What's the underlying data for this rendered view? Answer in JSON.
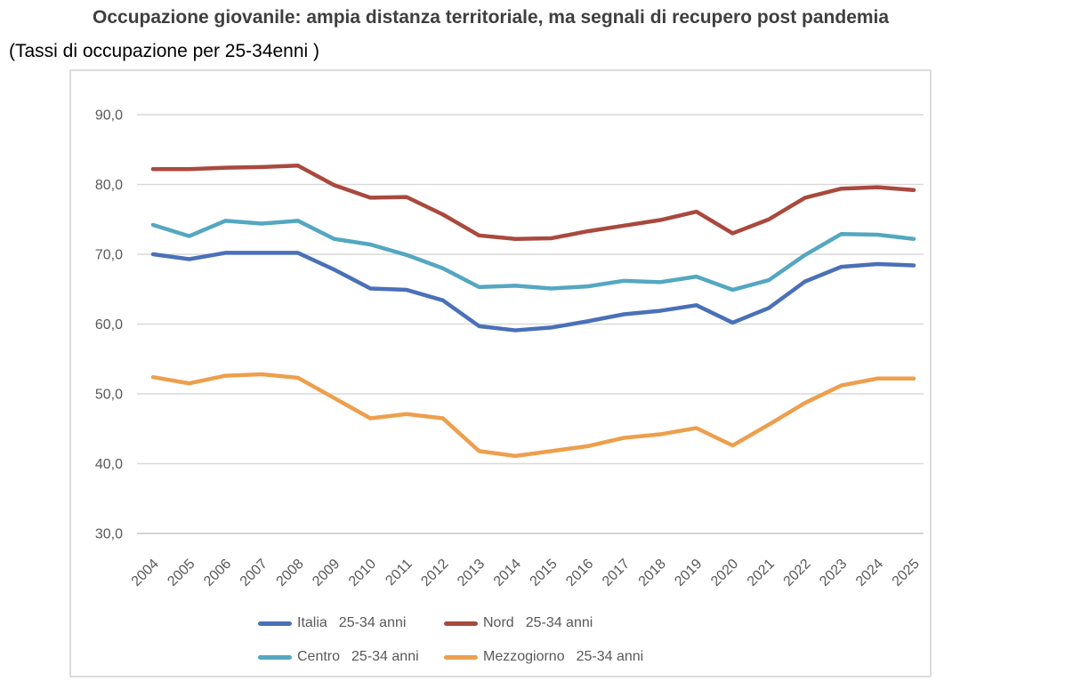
{
  "title": "Occupazione giovanile: ampia distanza territoriale, ma segnali di recupero post pandemia",
  "subtitle": "(Tassi di occupazione per 25-34enni )",
  "legend": {
    "items": [
      {
        "name": "Italia",
        "suffix": "25-34 anni",
        "color": "#4a70b8"
      },
      {
        "name": "Nord",
        "suffix": "25-34 anni",
        "color": "#a9493e"
      },
      {
        "name": "Centro",
        "suffix": "25-34 anni",
        "color": "#54a7c1"
      },
      {
        "name": "Mezzogiorno",
        "suffix": "25-34 anni",
        "color": "#ed9f4d"
      }
    ]
  },
  "chart_data": {
    "type": "line",
    "title": "Occupazione giovanile: ampia distanza territoriale, ma segnali di recupero post pandemia",
    "subtitle": "(Tassi di occupazione per 25-34enni )",
    "categories": [
      "2004",
      "2005",
      "2006",
      "2007",
      "2008",
      "2009",
      "2010",
      "2011",
      "2012",
      "2013",
      "2014",
      "2015",
      "2016",
      "2017",
      "2018",
      "2019",
      "2020",
      "2021",
      "2022",
      "2023",
      "2024",
      "2025"
    ],
    "series": [
      {
        "name": "Italia 25-34 anni",
        "color": "#4a70b8",
        "values": [
          70.0,
          69.3,
          70.2,
          70.2,
          70.2,
          67.8,
          65.1,
          64.9,
          63.4,
          59.7,
          59.1,
          59.5,
          60.4,
          61.4,
          61.9,
          62.7,
          60.2,
          62.3,
          66.1,
          68.2,
          68.6,
          68.4
        ]
      },
      {
        "name": "Nord 25-34 anni",
        "color": "#a9493e",
        "values": [
          82.2,
          82.2,
          82.4,
          82.5,
          82.7,
          79.9,
          78.1,
          78.2,
          75.7,
          72.7,
          72.2,
          72.3,
          73.3,
          74.1,
          74.9,
          76.1,
          73.0,
          75.0,
          78.1,
          79.4,
          79.6,
          79.2
        ]
      },
      {
        "name": "Centro 25-34 anni",
        "color": "#54a7c1",
        "values": [
          74.2,
          72.6,
          74.8,
          74.4,
          74.8,
          72.2,
          71.4,
          69.9,
          68.0,
          65.3,
          65.5,
          65.1,
          65.4,
          66.2,
          66.0,
          66.8,
          64.9,
          66.3,
          69.9,
          72.9,
          72.8,
          72.2
        ]
      },
      {
        "name": "Mezzogiorno 25-34 anni",
        "color": "#ed9f4d",
        "values": [
          52.4,
          51.5,
          52.6,
          52.8,
          52.3,
          49.4,
          46.5,
          47.1,
          46.5,
          41.8,
          41.1,
          41.8,
          42.5,
          43.7,
          44.2,
          45.1,
          42.6,
          45.6,
          48.7,
          51.2,
          52.2,
          52.2
        ]
      }
    ],
    "xlabel": "",
    "ylabel": "",
    "ylim": [
      30,
      90
    ],
    "ytick_values": [
      90,
      80,
      70,
      60,
      50,
      40,
      30
    ],
    "ytick_labels": [
      "90,0",
      "80,0",
      "70,0",
      "60,0",
      "50,0",
      "40,0",
      "30,0"
    ],
    "grid": true,
    "legend_position": "bottom",
    "colors": {
      "grid": "#d9d9d9",
      "axis": "#c6c6c6",
      "tick_text": "#595959",
      "title_text": "#3f3f3f"
    }
  }
}
